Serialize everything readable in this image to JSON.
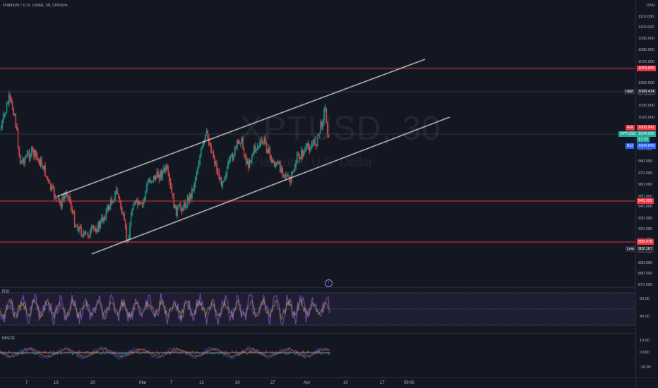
{
  "header": {
    "symbol_title": "Platinum / U.S. Dollar, 30, OANDA",
    "currency": "USD"
  },
  "watermark": {
    "ticker": "XPTUSD, 30",
    "name": "Platinum / U.S. Dollar"
  },
  "price_axis": {
    "ticks": [
      "1110.000",
      "1100.000",
      "1090.000",
      "1080.000",
      "1070.000",
      "1050.000",
      "1040.000",
      "1030.000",
      "1020.000",
      "1010.000",
      "990.000",
      "980.000",
      "970.000",
      "960.000",
      "950.000",
      "940.000",
      "930.000",
      "920.000",
      "910.000",
      "900.000",
      "890.000",
      "880.000",
      "870.000"
    ]
  },
  "price_tags": {
    "resistance": {
      "label": "",
      "value": "1063.895"
    },
    "high": {
      "label": "High",
      "value": "1043.414"
    },
    "ask": {
      "label": "Ask",
      "value": "1005.941"
    },
    "last": {
      "label": "XPTUSD",
      "value": "1004.990",
      "sub": "17:33"
    },
    "bid": {
      "label": "Bid",
      "value": "1004.043"
    },
    "support1": {
      "label": "",
      "value": "945.395"
    },
    "support2": {
      "label": "",
      "value": "908.478"
    },
    "low": {
      "label": "Low",
      "value": "902.167"
    }
  },
  "rsi": {
    "label": "RSI",
    "ticks": [
      "60.00",
      "40.00"
    ]
  },
  "macd": {
    "label": "MACD",
    "ticks": [
      "10.00",
      "0.000",
      "-10.00"
    ]
  },
  "time_axis": {
    "labels": [
      "7",
      "13",
      "20",
      "Mar",
      "7",
      "13",
      "20",
      "27",
      "Apr",
      "10",
      "17",
      "09:00"
    ]
  },
  "alert_marker": "f",
  "colors": {
    "background": "#131722",
    "up": "#26a69a",
    "down": "#ef5350",
    "hline": "#f23645",
    "channel": "#ffffff",
    "rsi": "#7e57c2",
    "macd": "#2962ff",
    "signal": "#ff6d00"
  }
}
